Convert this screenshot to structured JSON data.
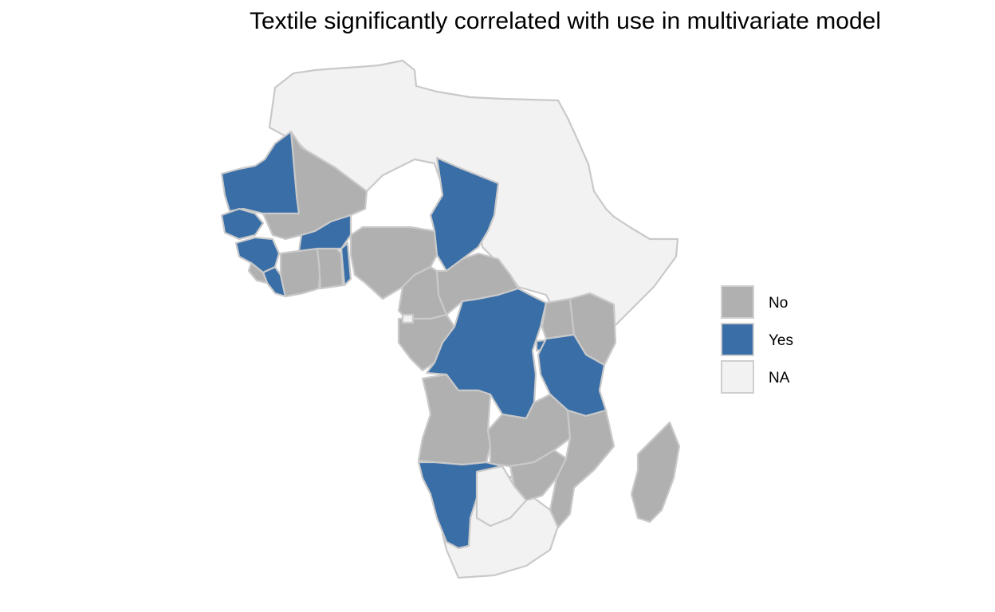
{
  "title": "Textile significantly correlated with use in multivariate model",
  "colors": {
    "no": "#b0b0b0",
    "yes": "#3a6ea7",
    "na": "#f2f2f2",
    "border": "#c9c9c9"
  },
  "legend": {
    "items": [
      {
        "label": "No",
        "category": "no"
      },
      {
        "label": "Yes",
        "category": "yes"
      },
      {
        "label": "NA",
        "category": "na"
      }
    ]
  }
}
